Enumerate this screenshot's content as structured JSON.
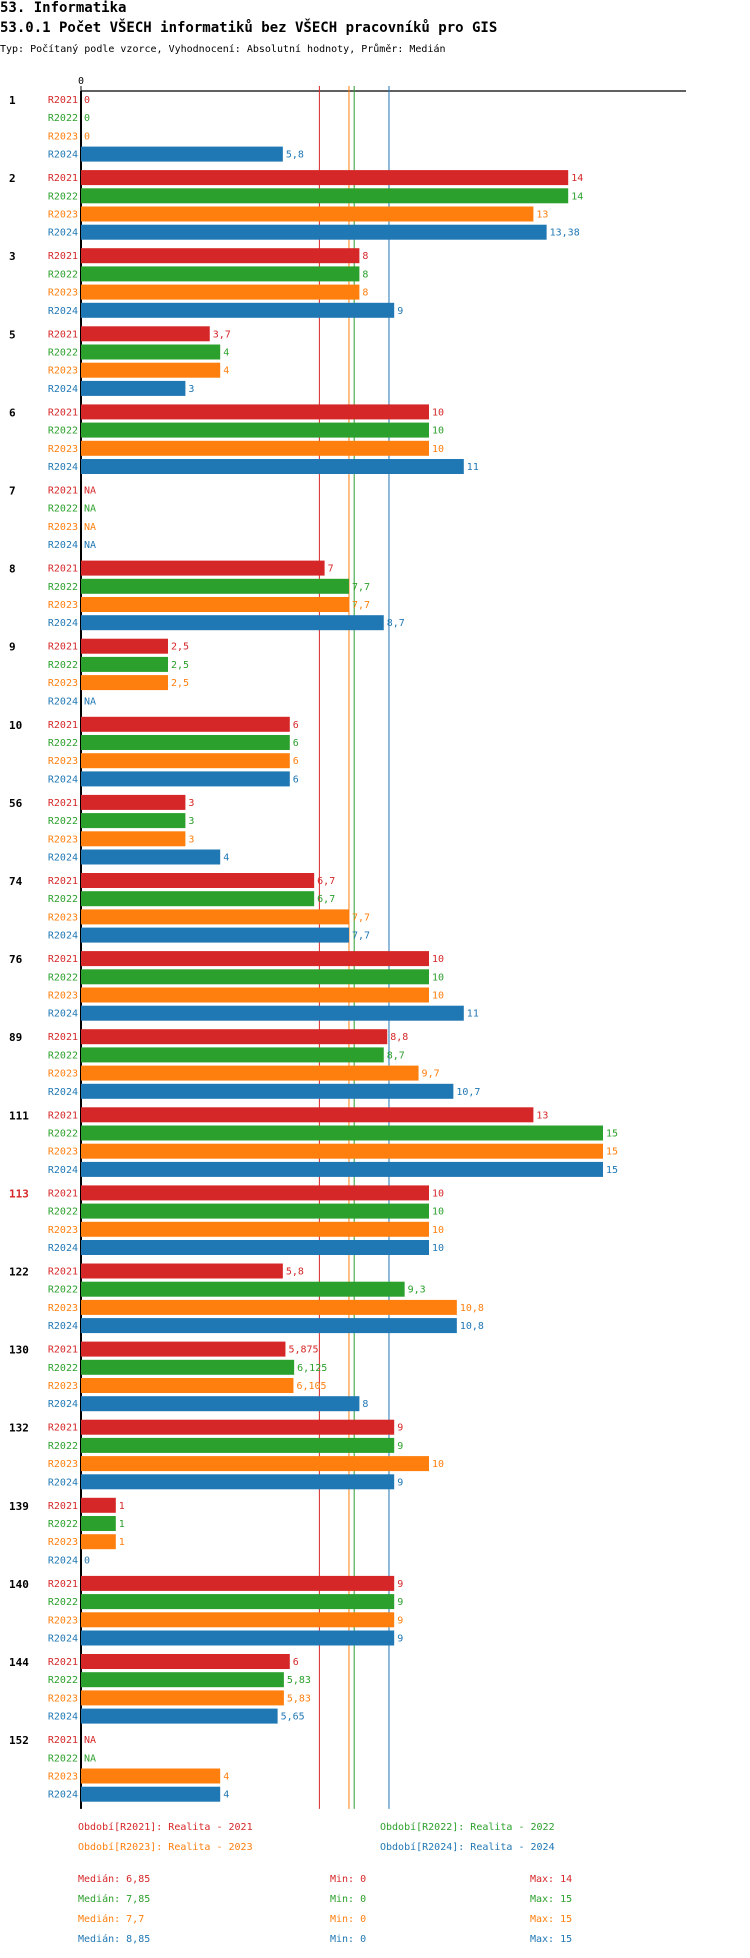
{
  "page": {
    "title": "53. Informatika",
    "subtitle": "53.0.1 Počet VŠECH informatiků bez VŠECH pracovníků pro GIS",
    "type_line": "Typ: Počítaný podle vzorce, Vyhodnocení: Absolutní hodnoty, Průměr: Medián"
  },
  "colors": {
    "R2021": "#d62728",
    "R2022": "#2ca02c",
    "R2023": "#ff7f0e",
    "R2024": "#1f77b4",
    "highlight_group": "#d62728"
  },
  "legend": [
    {
      "text": "Období[R2021]: Realita - 2021",
      "series": "R2021"
    },
    {
      "text": "Období[R2022]: Realita - 2022",
      "series": "R2022"
    },
    {
      "text": "Období[R2023]: Realita - 2023",
      "series": "R2023"
    },
    {
      "text": "Období[R2024]: Realita - 2024",
      "series": "R2024"
    }
  ],
  "stats": [
    {
      "series": "R2021",
      "median": "Medián: 6,85",
      "min": "Min: 0",
      "max": "Max: 14"
    },
    {
      "series": "R2022",
      "median": "Medián: 7,85",
      "min": "Min: 0",
      "max": "Max: 15"
    },
    {
      "series": "R2023",
      "median": "Medián: 7,7",
      "min": "Min: 0",
      "max": "Max: 15"
    },
    {
      "series": "R2024",
      "median": "Medián: 8,85",
      "min": "Min: 0",
      "max": "Max: 15"
    }
  ],
  "chart_data": {
    "type": "bar",
    "orientation": "horizontal",
    "title": "53.0.1 Počet VŠECH informatiků bez VŠECH pracovníků pro GIS",
    "x_tick_label": "0",
    "xlim": [
      0,
      15
    ],
    "series_names": [
      "R2021",
      "R2022",
      "R2023",
      "R2024"
    ],
    "median_lines": {
      "R2021": 6.85,
      "R2022": 7.85,
      "R2023": 7.7,
      "R2024": 8.85
    },
    "highlight_categories": [
      "113"
    ],
    "categories": [
      "1",
      "2",
      "3",
      "5",
      "6",
      "7",
      "8",
      "9",
      "10",
      "56",
      "74",
      "76",
      "89",
      "111",
      "113",
      "122",
      "130",
      "132",
      "139",
      "140",
      "144",
      "152"
    ],
    "values": {
      "R2021": [
        0,
        14,
        8,
        3.7,
        10,
        null,
        7,
        2.5,
        6,
        3,
        6.7,
        10,
        8.8,
        13,
        10,
        5.8,
        5.875,
        9,
        1,
        9,
        6,
        null
      ],
      "R2022": [
        0,
        14,
        8,
        4,
        10,
        null,
        7.7,
        2.5,
        6,
        3,
        6.7,
        10,
        8.7,
        15,
        10,
        9.3,
        6.125,
        9,
        1,
        9,
        5.83,
        null
      ],
      "R2023": [
        0,
        13,
        8,
        4,
        10,
        null,
        7.7,
        2.5,
        6,
        3,
        7.7,
        10,
        9.7,
        15,
        10,
        10.8,
        6.105,
        10,
        1,
        9,
        5.83,
        4
      ],
      "R2024": [
        5.8,
        13.38,
        9,
        3,
        11,
        null,
        8.7,
        null,
        6,
        4,
        7.7,
        11,
        10.7,
        15,
        10,
        10.8,
        8,
        9,
        0,
        9,
        5.65,
        4
      ]
    },
    "value_labels": {
      "R2021": [
        "0",
        "14",
        "8",
        "3,7",
        "10",
        "NA",
        "7",
        "2,5",
        "6",
        "3",
        "6,7",
        "10",
        "8,8",
        "13",
        "10",
        "5,8",
        "5,875",
        "9",
        "1",
        "9",
        "6",
        "NA"
      ],
      "R2022": [
        "0",
        "14",
        "8",
        "4",
        "10",
        "NA",
        "7,7",
        "2,5",
        "6",
        "3",
        "6,7",
        "10",
        "8,7",
        "15",
        "10",
        "9,3",
        "6,125",
        "9",
        "1",
        "9",
        "5,83",
        "NA"
      ],
      "R2023": [
        "0",
        "13",
        "8",
        "4",
        "10",
        "NA",
        "7,7",
        "2,5",
        "6",
        "3",
        "7,7",
        "10",
        "9,7",
        "15",
        "10",
        "10,8",
        "6,105",
        "10",
        "1",
        "9",
        "5,83",
        "4"
      ],
      "R2024": [
        "5,8",
        "13,38",
        "9",
        "3",
        "11",
        "NA",
        "8,7",
        "NA",
        "6",
        "4",
        "7,7",
        "11",
        "10,7",
        "15",
        "10",
        "10,8",
        "8",
        "9",
        "0",
        "9",
        "5,65",
        "4"
      ]
    }
  }
}
